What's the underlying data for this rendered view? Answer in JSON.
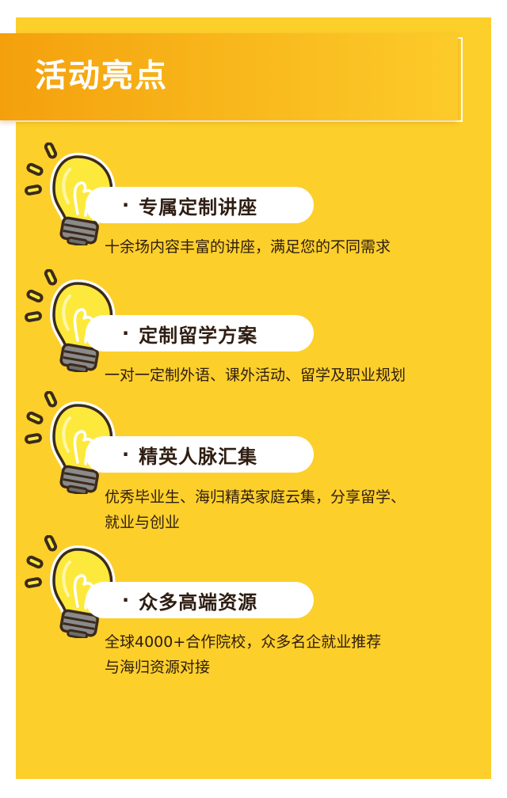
{
  "header": {
    "title": "活动亮点"
  },
  "items": [
    {
      "title": "专属定制讲座",
      "desc": [
        "十余场内容丰富的讲座，满足您的不同需求"
      ]
    },
    {
      "title": "定制留学方案",
      "desc": [
        "一对一定制外语、课外活动、留学及职业规划"
      ]
    },
    {
      "title": "精英人脉汇集",
      "desc": [
        "优秀毕业生、海归精英家庭云集，分享留学、",
        "就业与创业"
      ]
    },
    {
      "title": "众多高端资源",
      "desc": [
        "全球4000+合作院校，众多名企就业推荐",
        "与海归资源对接"
      ]
    }
  ],
  "colors": {
    "background": "#fccf2b",
    "title_bar_start": "#f4a00d",
    "title_bar_end": "#fccb2a",
    "text": "#2e1d12",
    "bulb": "#fde93c",
    "bulb_outline": "#3c2a1c",
    "bulb_base": "#8a8a8a"
  },
  "bullet_symbol": "·",
  "icons": {
    "item_icon": "lightbulb-icon"
  }
}
